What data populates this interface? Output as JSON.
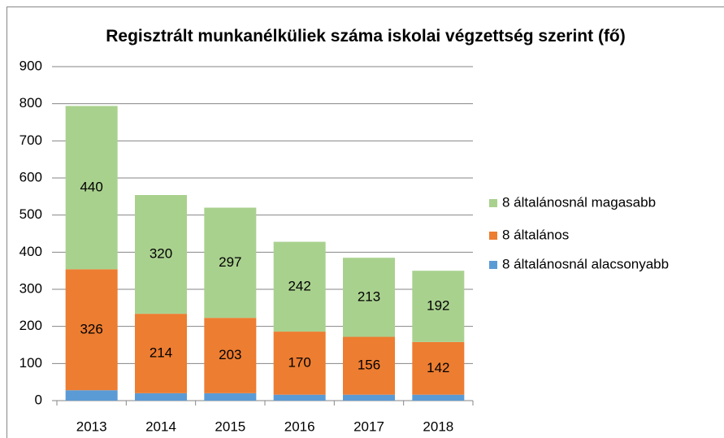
{
  "chart_data": {
    "type": "stacked_bar",
    "title": "Regisztrált munkanélküliek száma iskolai végzettség szerint (fő)",
    "categories": [
      "2013",
      "2014",
      "2015",
      "2016",
      "2017",
      "2018"
    ],
    "series": [
      {
        "name": "8 általánosnál alacsonyabb",
        "color": "#5b9bd5",
        "values": [
          28,
          20,
          20,
          16,
          16,
          16
        ]
      },
      {
        "name": "8 általános",
        "color": "#ed7d31",
        "values": [
          326,
          214,
          203,
          170,
          156,
          142
        ]
      },
      {
        "name": "8 általánosnál magasabb",
        "color": "#a9d18e",
        "values": [
          440,
          320,
          297,
          242,
          213,
          192
        ]
      }
    ],
    "labeled_series": [
      1,
      2
    ],
    "ylim": [
      0,
      900
    ],
    "yticks": [
      0,
      100,
      200,
      300,
      400,
      500,
      600,
      700,
      800,
      900
    ],
    "grid": true,
    "legend": "right"
  }
}
